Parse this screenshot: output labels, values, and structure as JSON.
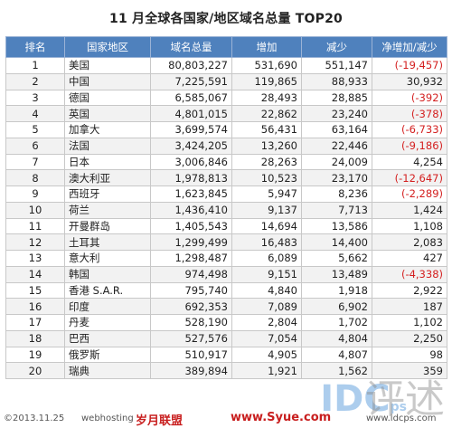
{
  "title": "11 月全球各国家/地区域名总量 TOP20",
  "columns": [
    "排名",
    "国家地区",
    "域名总量",
    "增加",
    "减少",
    "净增加/减少"
  ],
  "rows": [
    {
      "rank": "1",
      "country": "美国",
      "total": "80,803,227",
      "increase": "531,690",
      "decrease": "551,147",
      "net": "(-19,457)",
      "negative": true
    },
    {
      "rank": "2",
      "country": "中国",
      "total": "7,225,591",
      "increase": "119,865",
      "decrease": "88,933",
      "net": "30,932",
      "negative": false
    },
    {
      "rank": "3",
      "country": "德国",
      "total": "6,585,067",
      "increase": "28,493",
      "decrease": "28,885",
      "net": "(-392)",
      "negative": true
    },
    {
      "rank": "4",
      "country": "英国",
      "total": "4,801,015",
      "increase": "22,862",
      "decrease": "23,240",
      "net": "(-378)",
      "negative": true
    },
    {
      "rank": "5",
      "country": "加拿大",
      "total": "3,699,574",
      "increase": "56,431",
      "decrease": "63,164",
      "net": "(-6,733)",
      "negative": true
    },
    {
      "rank": "6",
      "country": "法国",
      "total": "3,424,205",
      "increase": "13,260",
      "decrease": "22,446",
      "net": "(-9,186)",
      "negative": true
    },
    {
      "rank": "7",
      "country": "日本",
      "total": "3,006,846",
      "increase": "28,263",
      "decrease": "24,009",
      "net": "4,254",
      "negative": false
    },
    {
      "rank": "8",
      "country": "澳大利亚",
      "total": "1,978,813",
      "increase": "10,523",
      "decrease": "23,170",
      "net": "(-12,647)",
      "negative": true
    },
    {
      "rank": "9",
      "country": "西班牙",
      "total": "1,623,845",
      "increase": "5,947",
      "decrease": "8,236",
      "net": "(-2,289)",
      "negative": true
    },
    {
      "rank": "10",
      "country": "荷兰",
      "total": "1,436,410",
      "increase": "9,137",
      "decrease": "7,713",
      "net": "1,424",
      "negative": false
    },
    {
      "rank": "11",
      "country": "开曼群岛",
      "total": "1,405,543",
      "increase": "14,694",
      "decrease": "13,586",
      "net": "1,108",
      "negative": false
    },
    {
      "rank": "12",
      "country": "土耳其",
      "total": "1,299,499",
      "increase": "16,483",
      "decrease": "14,400",
      "net": "2,083",
      "negative": false
    },
    {
      "rank": "13",
      "country": "意大利",
      "total": "1,298,487",
      "increase": "6,089",
      "decrease": "5,662",
      "net": "427",
      "negative": false
    },
    {
      "rank": "14",
      "country": "韩国",
      "total": "974,498",
      "increase": "9,151",
      "decrease": "13,489",
      "net": "(-4,338)",
      "negative": true
    },
    {
      "rank": "15",
      "country": "香港 S.A.R.",
      "total": "795,740",
      "increase": "4,840",
      "decrease": "1,918",
      "net": "2,922",
      "negative": false
    },
    {
      "rank": "16",
      "country": "印度",
      "total": "692,353",
      "increase": "7,089",
      "decrease": "6,902",
      "net": "187",
      "negative": false
    },
    {
      "rank": "17",
      "country": "丹麦",
      "total": "528,190",
      "increase": "2,804",
      "decrease": "1,702",
      "net": "1,102",
      "negative": false
    },
    {
      "rank": "18",
      "country": "巴西",
      "total": "527,576",
      "increase": "7,054",
      "decrease": "4,804",
      "net": "2,250",
      "negative": false
    },
    {
      "rank": "19",
      "country": "俄罗斯",
      "total": "510,917",
      "increase": "4,905",
      "decrease": "4,807",
      "net": "98",
      "negative": false
    },
    {
      "rank": "20",
      "country": "瑞典",
      "total": "389,894",
      "increase": "1,921",
      "decrease": "1,562",
      "net": "359",
      "negative": false
    }
  ],
  "watermark": {
    "copyright": "©2013.11.25",
    "site1": "webhosting",
    "brand_cn": "岁月联盟",
    "site2": "www.Syue.com",
    "site3": "www.idcps.com",
    "logo": "IDC",
    "logo_sub": "ps",
    "seal": "评述"
  }
}
